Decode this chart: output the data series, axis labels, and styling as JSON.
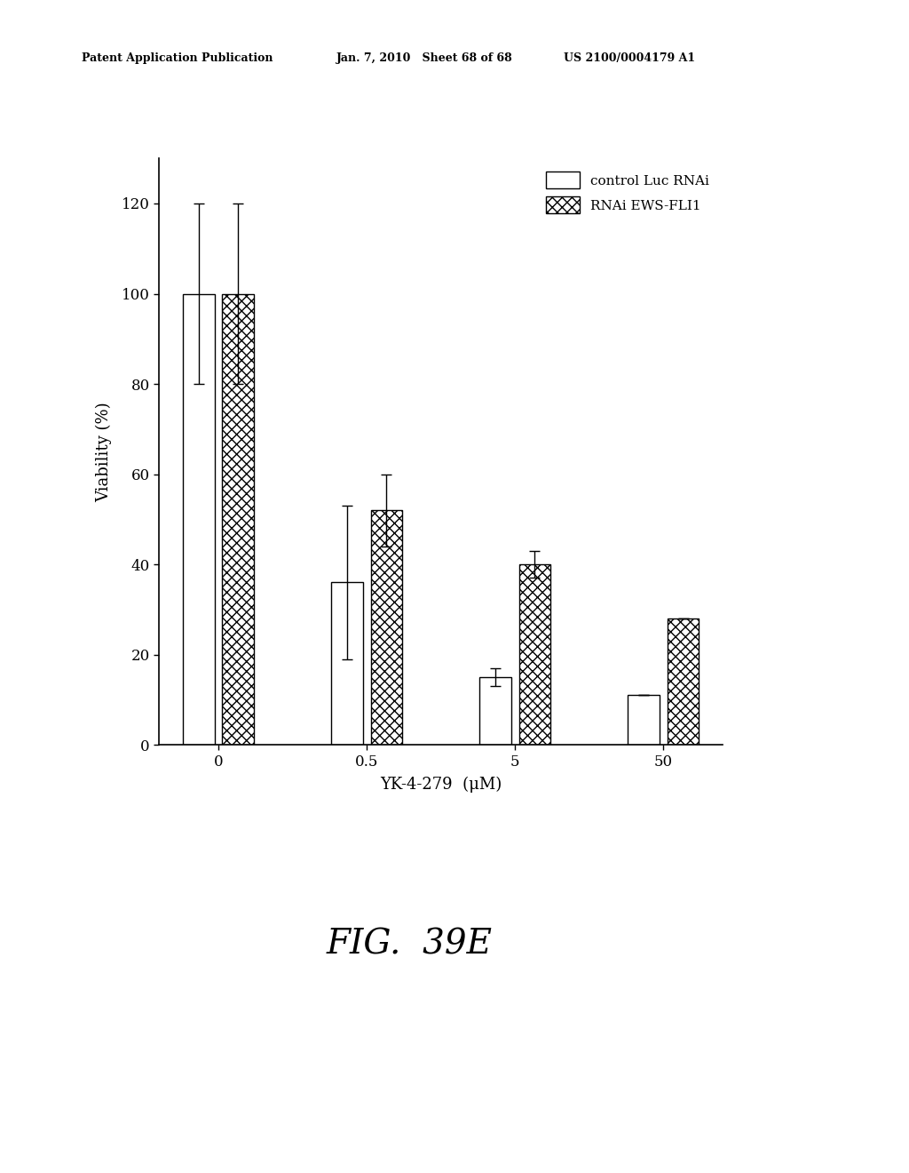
{
  "categories": [
    "0",
    "0.5",
    "5",
    "50"
  ],
  "control_values": [
    100,
    36,
    15,
    11
  ],
  "control_errors": [
    20,
    17,
    2,
    0
  ],
  "rnai_values": [
    100,
    52,
    40,
    28
  ],
  "rnai_errors": [
    20,
    8,
    3,
    0
  ],
  "ylabel": "Viability (%)",
  "xlabel": "YK-4-279  (μM)",
  "ylim": [
    0,
    130
  ],
  "yticks": [
    0,
    20,
    40,
    60,
    80,
    100,
    120
  ],
  "legend_labels": [
    "control Luc RNAi",
    "RNAi EWS-FLI1"
  ],
  "fig_label": "FIG.  39E",
  "header_left": "Patent Application Publication",
  "header_mid": "Jan. 7, 2010   Sheet 68 of 68",
  "header_right": "US 2100/0004179 A1",
  "bar_width": 0.32,
  "x_positions": [
    0,
    1.5,
    3.0,
    4.5
  ]
}
